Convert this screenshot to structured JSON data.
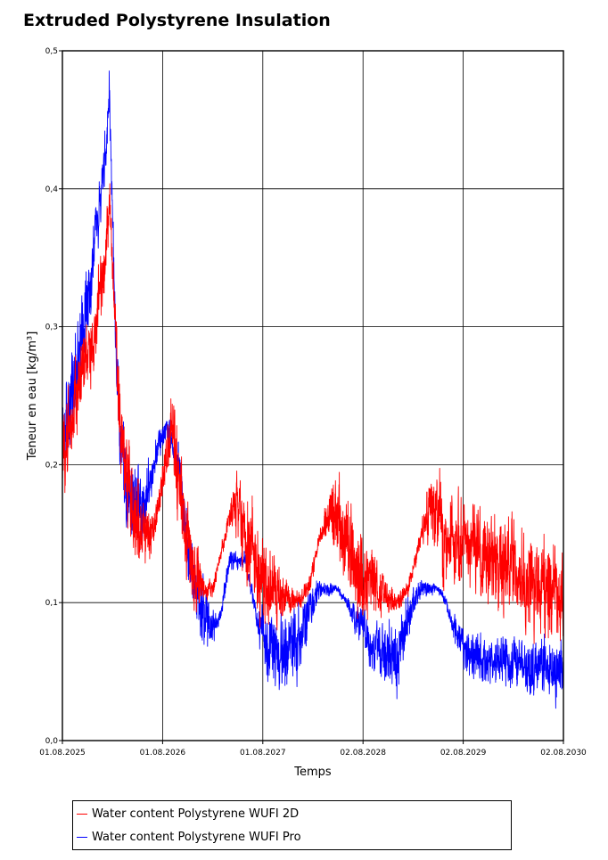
{
  "chart_data": {
    "type": "line",
    "title": "Extruded Polystyrene Insulation",
    "xlabel": "Temps",
    "ylabel": "Teneur en eau [kg/m³]",
    "x_ticks": [
      "01.08.2025",
      "01.08.2026",
      "01.08.2027",
      "02.08.2028",
      "02.08.2029",
      "02.08.2030"
    ],
    "y_ticks": [
      "0,0",
      "0,1",
      "0,2",
      "0,3",
      "0,4",
      "0,5"
    ],
    "xlim": [
      "2025-08-01",
      "2030-08-02"
    ],
    "ylim": [
      0,
      0.5
    ],
    "grid": true,
    "legend_position": "bottom",
    "series": [
      {
        "name": "Water content Polystyrene WUFI 2D",
        "color": "#ff0000",
        "noise": [
          0.045,
          0.045,
          0.045,
          0.04,
          0.04,
          0.035,
          0.03,
          0.03,
          0.045,
          0.05,
          0.05,
          0.03,
          0.02,
          0.02,
          0.045,
          0.05,
          0.05,
          0.04,
          0.01,
          0.01,
          0.01,
          0.04,
          0.05,
          0.05,
          0.04,
          0.01,
          0.01,
          0.01,
          0.04,
          0.05,
          0.05,
          0.04,
          0.01,
          0.01,
          0.01,
          0.04,
          0.05,
          0.05
        ],
        "x": [
          "2025-08-01",
          "2025-09-01",
          "2025-10-01",
          "2025-11-01",
          "2025-12-01",
          "2026-01-01",
          "2026-01-20",
          "2026-02-10",
          "2026-03-01",
          "2026-04-01",
          "2026-05-01",
          "2026-06-01",
          "2026-07-01",
          "2026-08-10",
          "2026-09-01",
          "2026-10-01",
          "2026-11-01",
          "2026-12-01",
          "2027-01-01",
          "2027-02-01",
          "2027-04-01",
          "2027-05-01",
          "2027-06-01",
          "2027-07-01",
          "2027-09-01",
          "2027-12-01",
          "2028-01-15",
          "2028-03-01",
          "2028-04-15",
          "2028-06-01",
          "2028-07-01",
          "2028-09-01",
          "2028-12-01",
          "2029-01-15",
          "2029-03-01",
          "2029-04-15",
          "2029-06-01",
          "2030-08-02"
        ],
        "values": [
          0.21,
          0.23,
          0.26,
          0.28,
          0.3,
          0.35,
          0.39,
          0.3,
          0.22,
          0.18,
          0.16,
          0.15,
          0.15,
          0.2,
          0.22,
          0.19,
          0.14,
          0.12,
          0.11,
          0.11,
          0.16,
          0.17,
          0.15,
          0.13,
          0.11,
          0.1,
          0.11,
          0.15,
          0.17,
          0.15,
          0.13,
          0.11,
          0.1,
          0.11,
          0.15,
          0.17,
          0.15,
          0.1
        ]
      },
      {
        "name": "Water content Polystyrene WUFI Pro",
        "color": "#0000ff",
        "noise": [
          0.05,
          0.05,
          0.05,
          0.045,
          0.04,
          0.03,
          0.025,
          0.03,
          0.04,
          0.045,
          0.045,
          0.035,
          0.02,
          0.015,
          0.02,
          0.035,
          0.045,
          0.04,
          0.02,
          0.01,
          0.01,
          0.01,
          0.01,
          0.03,
          0.04,
          0.04,
          0.025,
          0.01,
          0.005,
          0.005,
          0.015,
          0.025,
          0.035,
          0.04,
          0.025,
          0.01,
          0.005,
          0.005,
          0.015,
          0.025,
          0.03
        ],
        "x": [
          "2025-08-01",
          "2025-09-01",
          "2025-10-01",
          "2025-11-01",
          "2025-12-01",
          "2026-01-01",
          "2026-01-20",
          "2026-02-10",
          "2026-03-01",
          "2026-04-01",
          "2026-05-01",
          "2026-06-01",
          "2026-07-01",
          "2026-08-10",
          "2026-10-01",
          "2026-11-01",
          "2026-12-01",
          "2027-01-01",
          "2027-02-01",
          "2027-03-01",
          "2027-04-01",
          "2027-06-01",
          "2027-07-01",
          "2027-08-01",
          "2027-10-01",
          "2027-12-01",
          "2028-01-15",
          "2028-03-01",
          "2028-05-01",
          "2028-06-01",
          "2028-07-01",
          "2028-09-01",
          "2028-11-01",
          "2028-12-01",
          "2029-01-15",
          "2029-03-01",
          "2029-05-01",
          "2029-06-01",
          "2029-07-01",
          "2029-09-01",
          "2030-08-02"
        ],
        "values": [
          0.22,
          0.25,
          0.28,
          0.32,
          0.36,
          0.42,
          0.47,
          0.3,
          0.21,
          0.18,
          0.17,
          0.17,
          0.2,
          0.23,
          0.2,
          0.14,
          0.11,
          0.09,
          0.08,
          0.09,
          0.13,
          0.13,
          0.1,
          0.07,
          0.06,
          0.07,
          0.09,
          0.11,
          0.11,
          0.1,
          0.09,
          0.07,
          0.06,
          0.06,
          0.09,
          0.11,
          0.11,
          0.1,
          0.08,
          0.06,
          0.05
        ]
      }
    ]
  }
}
